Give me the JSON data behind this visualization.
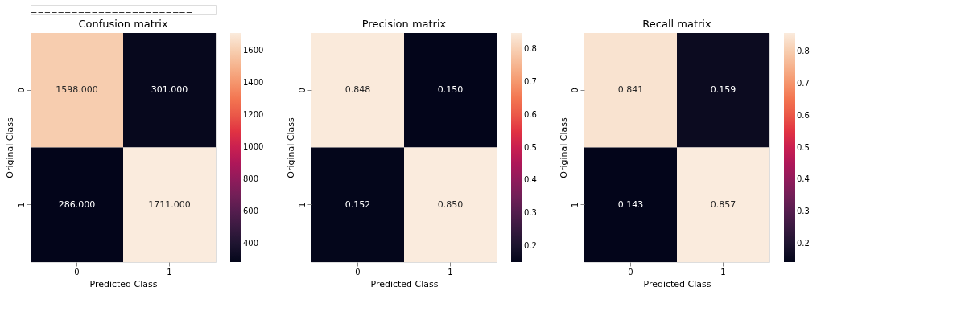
{
  "chart_data": [
    {
      "type": "heatmap",
      "title": "Confusion matrix",
      "xlabel": "Predicted Class",
      "ylabel": "Original Class",
      "categories": [
        "0",
        "1"
      ],
      "y_categories": [
        "0",
        "1"
      ],
      "cells": [
        [
          1598,
          301
        ],
        [
          286,
          1711
        ]
      ],
      "cell_labels": [
        [
          "1598.000",
          "301.000"
        ],
        [
          "286.000",
          "1711.000"
        ]
      ],
      "clim": [
        286,
        1711
      ],
      "cticks": [
        400,
        600,
        800,
        1000,
        1200,
        1400,
        1600
      ],
      "annotations": [
        "========================"
      ]
    },
    {
      "type": "heatmap",
      "title": "Precision matrix",
      "xlabel": "Predicted Class",
      "ylabel": "Original Class",
      "categories": [
        "0",
        "1"
      ],
      "y_categories": [
        "0",
        "1"
      ],
      "cells": [
        [
          0.848,
          0.15
        ],
        [
          0.152,
          0.85
        ]
      ],
      "cell_labels": [
        [
          "0.848",
          "0.150"
        ],
        [
          "0.152",
          "0.850"
        ]
      ],
      "clim": [
        0.15,
        0.85
      ],
      "cticks": [
        0.2,
        0.3,
        0.4,
        0.5,
        0.6,
        0.7,
        0.8
      ]
    },
    {
      "type": "heatmap",
      "title": "Recall matrix",
      "xlabel": "Predicted Class",
      "ylabel": "Original Class",
      "categories": [
        "0",
        "1"
      ],
      "y_categories": [
        "0",
        "1"
      ],
      "cells": [
        [
          0.841,
          0.159
        ],
        [
          0.143,
          0.857
        ]
      ],
      "cell_labels": [
        [
          "0.841",
          "0.159"
        ],
        [
          "0.143",
          "0.857"
        ]
      ],
      "clim": [
        0.143,
        0.857
      ],
      "cticks": [
        0.2,
        0.3,
        0.4,
        0.5,
        0.6,
        0.7,
        0.8
      ]
    }
  ]
}
